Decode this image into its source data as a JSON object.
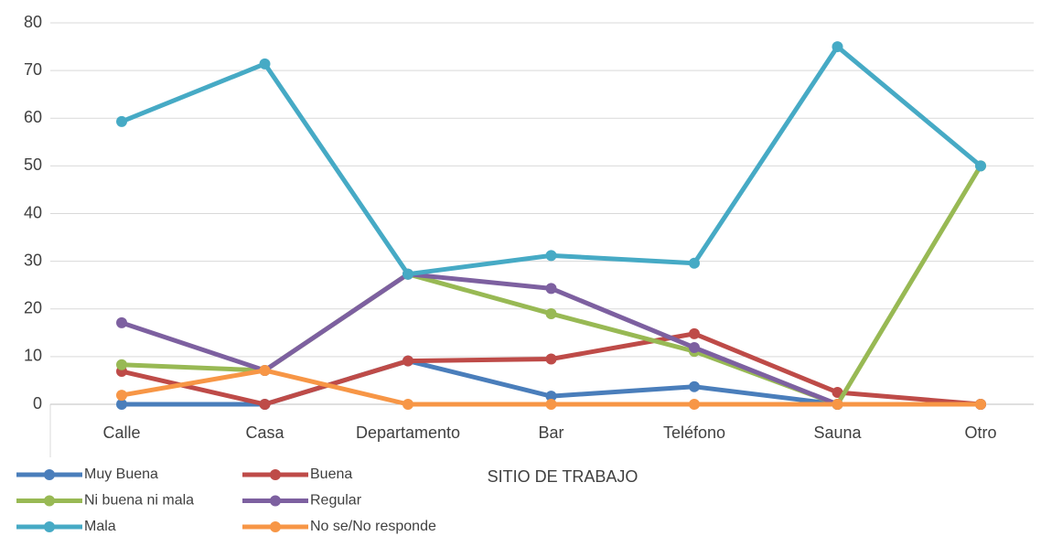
{
  "chart_data": {
    "type": "line",
    "x_label": "SITIO DE TRABAJO",
    "categories": [
      "Calle",
      "Casa",
      "Departamento",
      "Bar",
      "Teléfono",
      "Sauna",
      "Otro"
    ],
    "series": [
      {
        "name": "Muy Buena",
        "color": "#4a7ebb",
        "values": [
          0,
          0,
          9.1,
          1.7,
          3.7,
          0,
          0
        ]
      },
      {
        "name": "Buena",
        "color": "#be4b48",
        "values": [
          6.9,
          0,
          9.1,
          9.5,
          14.8,
          2.5,
          0
        ]
      },
      {
        "name": "Ni buena ni mala",
        "color": "#98b954",
        "values": [
          8.3,
          7.1,
          27.3,
          19.0,
          11.1,
          0,
          50
        ]
      },
      {
        "name": "Regular",
        "color": "#7d60a0",
        "values": [
          17.1,
          7.1,
          27.3,
          24.3,
          11.9,
          0,
          0
        ]
      },
      {
        "name": "Mala",
        "color": "#46aac5",
        "values": [
          59.3,
          71.4,
          27.3,
          31.2,
          29.6,
          75,
          50
        ]
      },
      {
        "name": "No se/No responde",
        "color": "#f79646",
        "values": [
          1.9,
          7.1,
          0,
          0,
          0,
          0,
          0
        ]
      }
    ],
    "ylim": [
      0,
      80
    ],
    "yticks": [
      0,
      10,
      20,
      30,
      40,
      50,
      60,
      70,
      80
    ],
    "grid": true,
    "legend": "bottom-left"
  }
}
